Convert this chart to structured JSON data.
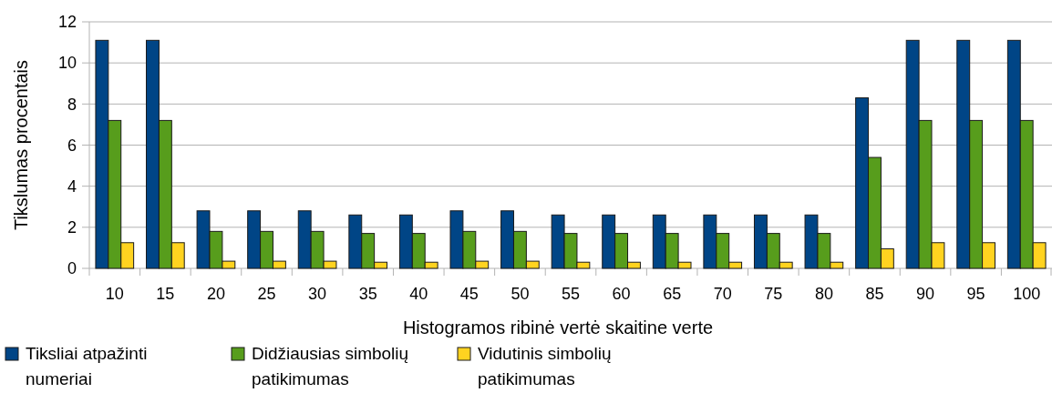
{
  "chart_data": {
    "type": "bar",
    "xlabel": "Histogramos ribinė vertė skaitine verte",
    "ylabel": "Tikslumas procentais",
    "categories": [
      "10",
      "15",
      "20",
      "25",
      "30",
      "35",
      "40",
      "45",
      "50",
      "55",
      "60",
      "65",
      "70",
      "75",
      "80",
      "85",
      "90",
      "95",
      "100"
    ],
    "series": [
      {
        "name": "Tiksliai atpažinti numeriai",
        "color": "#004586",
        "values": [
          11.1,
          11.1,
          2.8,
          2.8,
          2.8,
          2.6,
          2.6,
          2.8,
          2.8,
          2.6,
          2.6,
          2.6,
          2.6,
          2.6,
          2.6,
          8.3,
          11.1,
          11.1,
          11.1
        ]
      },
      {
        "name": "Didžiausias simbolių patikimumas",
        "color": "#579d1c",
        "values": [
          7.2,
          7.2,
          1.8,
          1.8,
          1.8,
          1.7,
          1.7,
          1.8,
          1.8,
          1.7,
          1.7,
          1.7,
          1.7,
          1.7,
          1.7,
          5.4,
          7.2,
          7.2,
          7.2
        ]
      },
      {
        "name": "Vidutinis simbolių patikimumas",
        "color": "#ffd320",
        "values": [
          1.25,
          1.25,
          0.35,
          0.35,
          0.35,
          0.3,
          0.3,
          0.35,
          0.35,
          0.3,
          0.3,
          0.3,
          0.3,
          0.3,
          0.3,
          0.95,
          1.25,
          1.25,
          1.25
        ]
      }
    ],
    "ylim": [
      0,
      12
    ],
    "yticks": [
      0,
      2,
      4,
      6,
      8,
      10,
      12
    ],
    "grid": "y",
    "legend": "bottom left"
  }
}
